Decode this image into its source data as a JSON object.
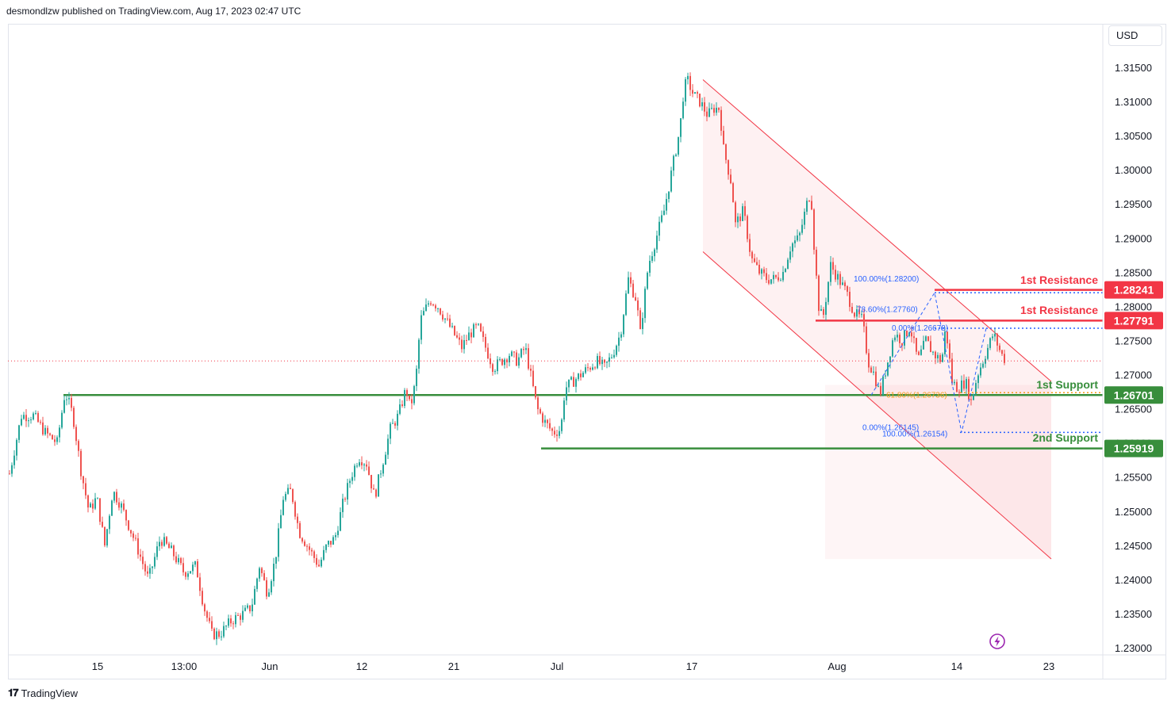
{
  "header": {
    "published_text": "desmondlzw published on TradingView.com, Aug 17, 2023 02:47 UTC",
    "currency": "USD"
  },
  "footer": {
    "brand": "TradingView"
  },
  "colors": {
    "up": "#26a69a",
    "down": "#ef5350",
    "support": "#388e3c",
    "resistance": "#f23645",
    "channel": "#f23645",
    "fib": "#2962ff",
    "fib_orange": "#f59c1a",
    "price_line": "#f23645"
  },
  "chart_data": {
    "type": "candlestick",
    "symbol_currency": "USD",
    "y_ticks": [
      "1.31500",
      "1.31000",
      "1.30500",
      "1.30000",
      "1.29500",
      "1.29000",
      "1.28500",
      "1.28000",
      "1.27500",
      "1.27000",
      "1.26500",
      "1.26000",
      "1.25500",
      "1.25000",
      "1.24500",
      "1.24000",
      "1.23500",
      "1.23000"
    ],
    "x_ticks": [
      "15",
      "13:00",
      "Jun",
      "12",
      "21",
      "Jul",
      "17",
      "Aug",
      "14",
      "23"
    ],
    "ylim": [
      1.23,
      1.3185
    ],
    "current_price": 1.272,
    "close_path": [
      [
        0,
        1.2555
      ],
      [
        15,
        1.264
      ],
      [
        30,
        1.264
      ],
      [
        45,
        1.2615
      ],
      [
        60,
        1.26
      ],
      [
        70,
        1.2675
      ],
      [
        80,
        1.264
      ],
      [
        90,
        1.256
      ],
      [
        100,
        1.25
      ],
      [
        110,
        1.252
      ],
      [
        120,
        1.245
      ],
      [
        130,
        1.253
      ],
      [
        140,
        1.251
      ],
      [
        150,
        1.248
      ],
      [
        160,
        1.245
      ],
      [
        175,
        1.24
      ],
      [
        190,
        1.246
      ],
      [
        205,
        1.244
      ],
      [
        220,
        1.241
      ],
      [
        235,
        1.242
      ],
      [
        245,
        1.236
      ],
      [
        255,
        1.232
      ],
      [
        265,
        1.232
      ],
      [
        280,
        1.234
      ],
      [
        295,
        1.235
      ],
      [
        305,
        1.236
      ],
      [
        315,
        1.242
      ],
      [
        325,
        1.238
      ],
      [
        335,
        1.243
      ],
      [
        345,
        1.252
      ],
      [
        355,
        1.253
      ],
      [
        365,
        1.247
      ],
      [
        375,
        1.245
      ],
      [
        390,
        1.242
      ],
      [
        400,
        1.245
      ],
      [
        410,
        1.246
      ],
      [
        420,
        1.251
      ],
      [
        430,
        1.255
      ],
      [
        440,
        1.258
      ],
      [
        450,
        1.257
      ],
      [
        460,
        1.252
      ],
      [
        470,
        1.257
      ],
      [
        480,
        1.262
      ],
      [
        490,
        1.264
      ],
      [
        500,
        1.268
      ],
      [
        505,
        1.265
      ],
      [
        512,
        1.269
      ],
      [
        518,
        1.278
      ],
      [
        530,
        1.281
      ],
      [
        540,
        1.28
      ],
      [
        550,
        1.278
      ],
      [
        560,
        1.276
      ],
      [
        570,
        1.274
      ],
      [
        580,
        1.276
      ],
      [
        590,
        1.277
      ],
      [
        600,
        1.274
      ],
      [
        610,
        1.271
      ],
      [
        620,
        1.272
      ],
      [
        630,
        1.273
      ],
      [
        640,
        1.272
      ],
      [
        650,
        1.274
      ],
      [
        660,
        1.268
      ],
      [
        665,
        1.265
      ],
      [
        675,
        1.263
      ],
      [
        685,
        1.2615
      ],
      [
        695,
        1.262
      ],
      [
        700,
        1.268
      ],
      [
        710,
        1.269
      ],
      [
        720,
        1.27
      ],
      [
        730,
        1.271
      ],
      [
        740,
        1.272
      ],
      [
        750,
        1.271
      ],
      [
        760,
        1.273
      ],
      [
        770,
        1.276
      ],
      [
        780,
        1.284
      ],
      [
        790,
        1.281
      ],
      [
        795,
        1.276
      ],
      [
        805,
        1.286
      ],
      [
        815,
        1.29
      ],
      [
        825,
        1.294
      ],
      [
        835,
        1.3
      ],
      [
        845,
        1.306
      ],
      [
        850,
        1.312
      ],
      [
        855,
        1.313
      ],
      [
        862,
        1.311
      ],
      [
        870,
        1.31
      ],
      [
        880,
        1.308
      ],
      [
        888,
        1.309
      ],
      [
        895,
        1.309
      ],
      [
        900,
        1.303
      ],
      [
        910,
        1.298
      ],
      [
        915,
        1.292
      ],
      [
        925,
        1.294
      ],
      [
        935,
        1.287
      ],
      [
        945,
        1.285
      ],
      [
        955,
        1.284
      ],
      [
        965,
        1.284
      ],
      [
        975,
        1.285
      ],
      [
        985,
        1.289
      ],
      [
        995,
        1.29
      ],
      [
        1005,
        1.295
      ],
      [
        1010,
        1.297
      ],
      [
        1015,
        1.287
      ],
      [
        1020,
        1.28
      ],
      [
        1025,
        1.278
      ],
      [
        1035,
        1.286
      ],
      [
        1045,
        1.284
      ],
      [
        1055,
        1.282
      ],
      [
        1065,
        1.279
      ],
      [
        1075,
        1.278
      ],
      [
        1082,
        1.272
      ],
      [
        1090,
        1.27
      ],
      [
        1097,
        1.267
      ],
      [
        1105,
        1.271
      ],
      [
        1115,
        1.276
      ],
      [
        1125,
        1.275
      ],
      [
        1135,
        1.277
      ],
      [
        1145,
        1.272
      ],
      [
        1155,
        1.275
      ],
      [
        1165,
        1.273
      ],
      [
        1175,
        1.272
      ],
      [
        1180,
        1.277
      ],
      [
        1188,
        1.269
      ],
      [
        1195,
        1.268
      ],
      [
        1205,
        1.269
      ],
      [
        1212,
        1.266
      ],
      [
        1220,
        1.27
      ],
      [
        1230,
        1.273
      ],
      [
        1240,
        1.276
      ],
      [
        1250,
        1.273
      ],
      [
        1256,
        1.272
      ]
    ],
    "channel": {
      "upper": [
        {
          "x": "Jul 17",
          "y": 1.3132
        },
        {
          "x": "Aug 23",
          "y": 1.269
        }
      ],
      "lower": [
        {
          "x": "Jul 17",
          "y": 1.288
        },
        {
          "x": "Aug 23",
          "y": 1.243
        }
      ]
    },
    "levels": [
      {
        "name": "1st Resistance",
        "value": 1.28241,
        "label": "1.28241",
        "type": "resistance"
      },
      {
        "name": "1st Resistance",
        "value": 1.27791,
        "label": "1.27791",
        "type": "resistance"
      },
      {
        "name": "1st Support",
        "value": 1.26701,
        "label": "1.26701",
        "type": "support"
      },
      {
        "name": "2nd Support",
        "value": 1.25919,
        "label": "1.25919",
        "type": "support"
      }
    ],
    "fib_labels": [
      {
        "text": "100.00%(1.28200)",
        "value": 1.284,
        "color": "fib"
      },
      {
        "text": "78.60%(1.27760)",
        "value": 1.2795,
        "color": "fib"
      },
      {
        "text": "0.00%(1.26678)",
        "value": 1.2768,
        "color": "fib"
      },
      {
        "text": "61.80%(1.26736)",
        "value": 1.267,
        "color": "fib_orange"
      },
      {
        "text": "0.00%(1.26145)",
        "value": 1.2622,
        "color": "fib"
      },
      {
        "text": "100.00%(1.26154)",
        "value": 1.2613,
        "color": "fib"
      }
    ]
  }
}
